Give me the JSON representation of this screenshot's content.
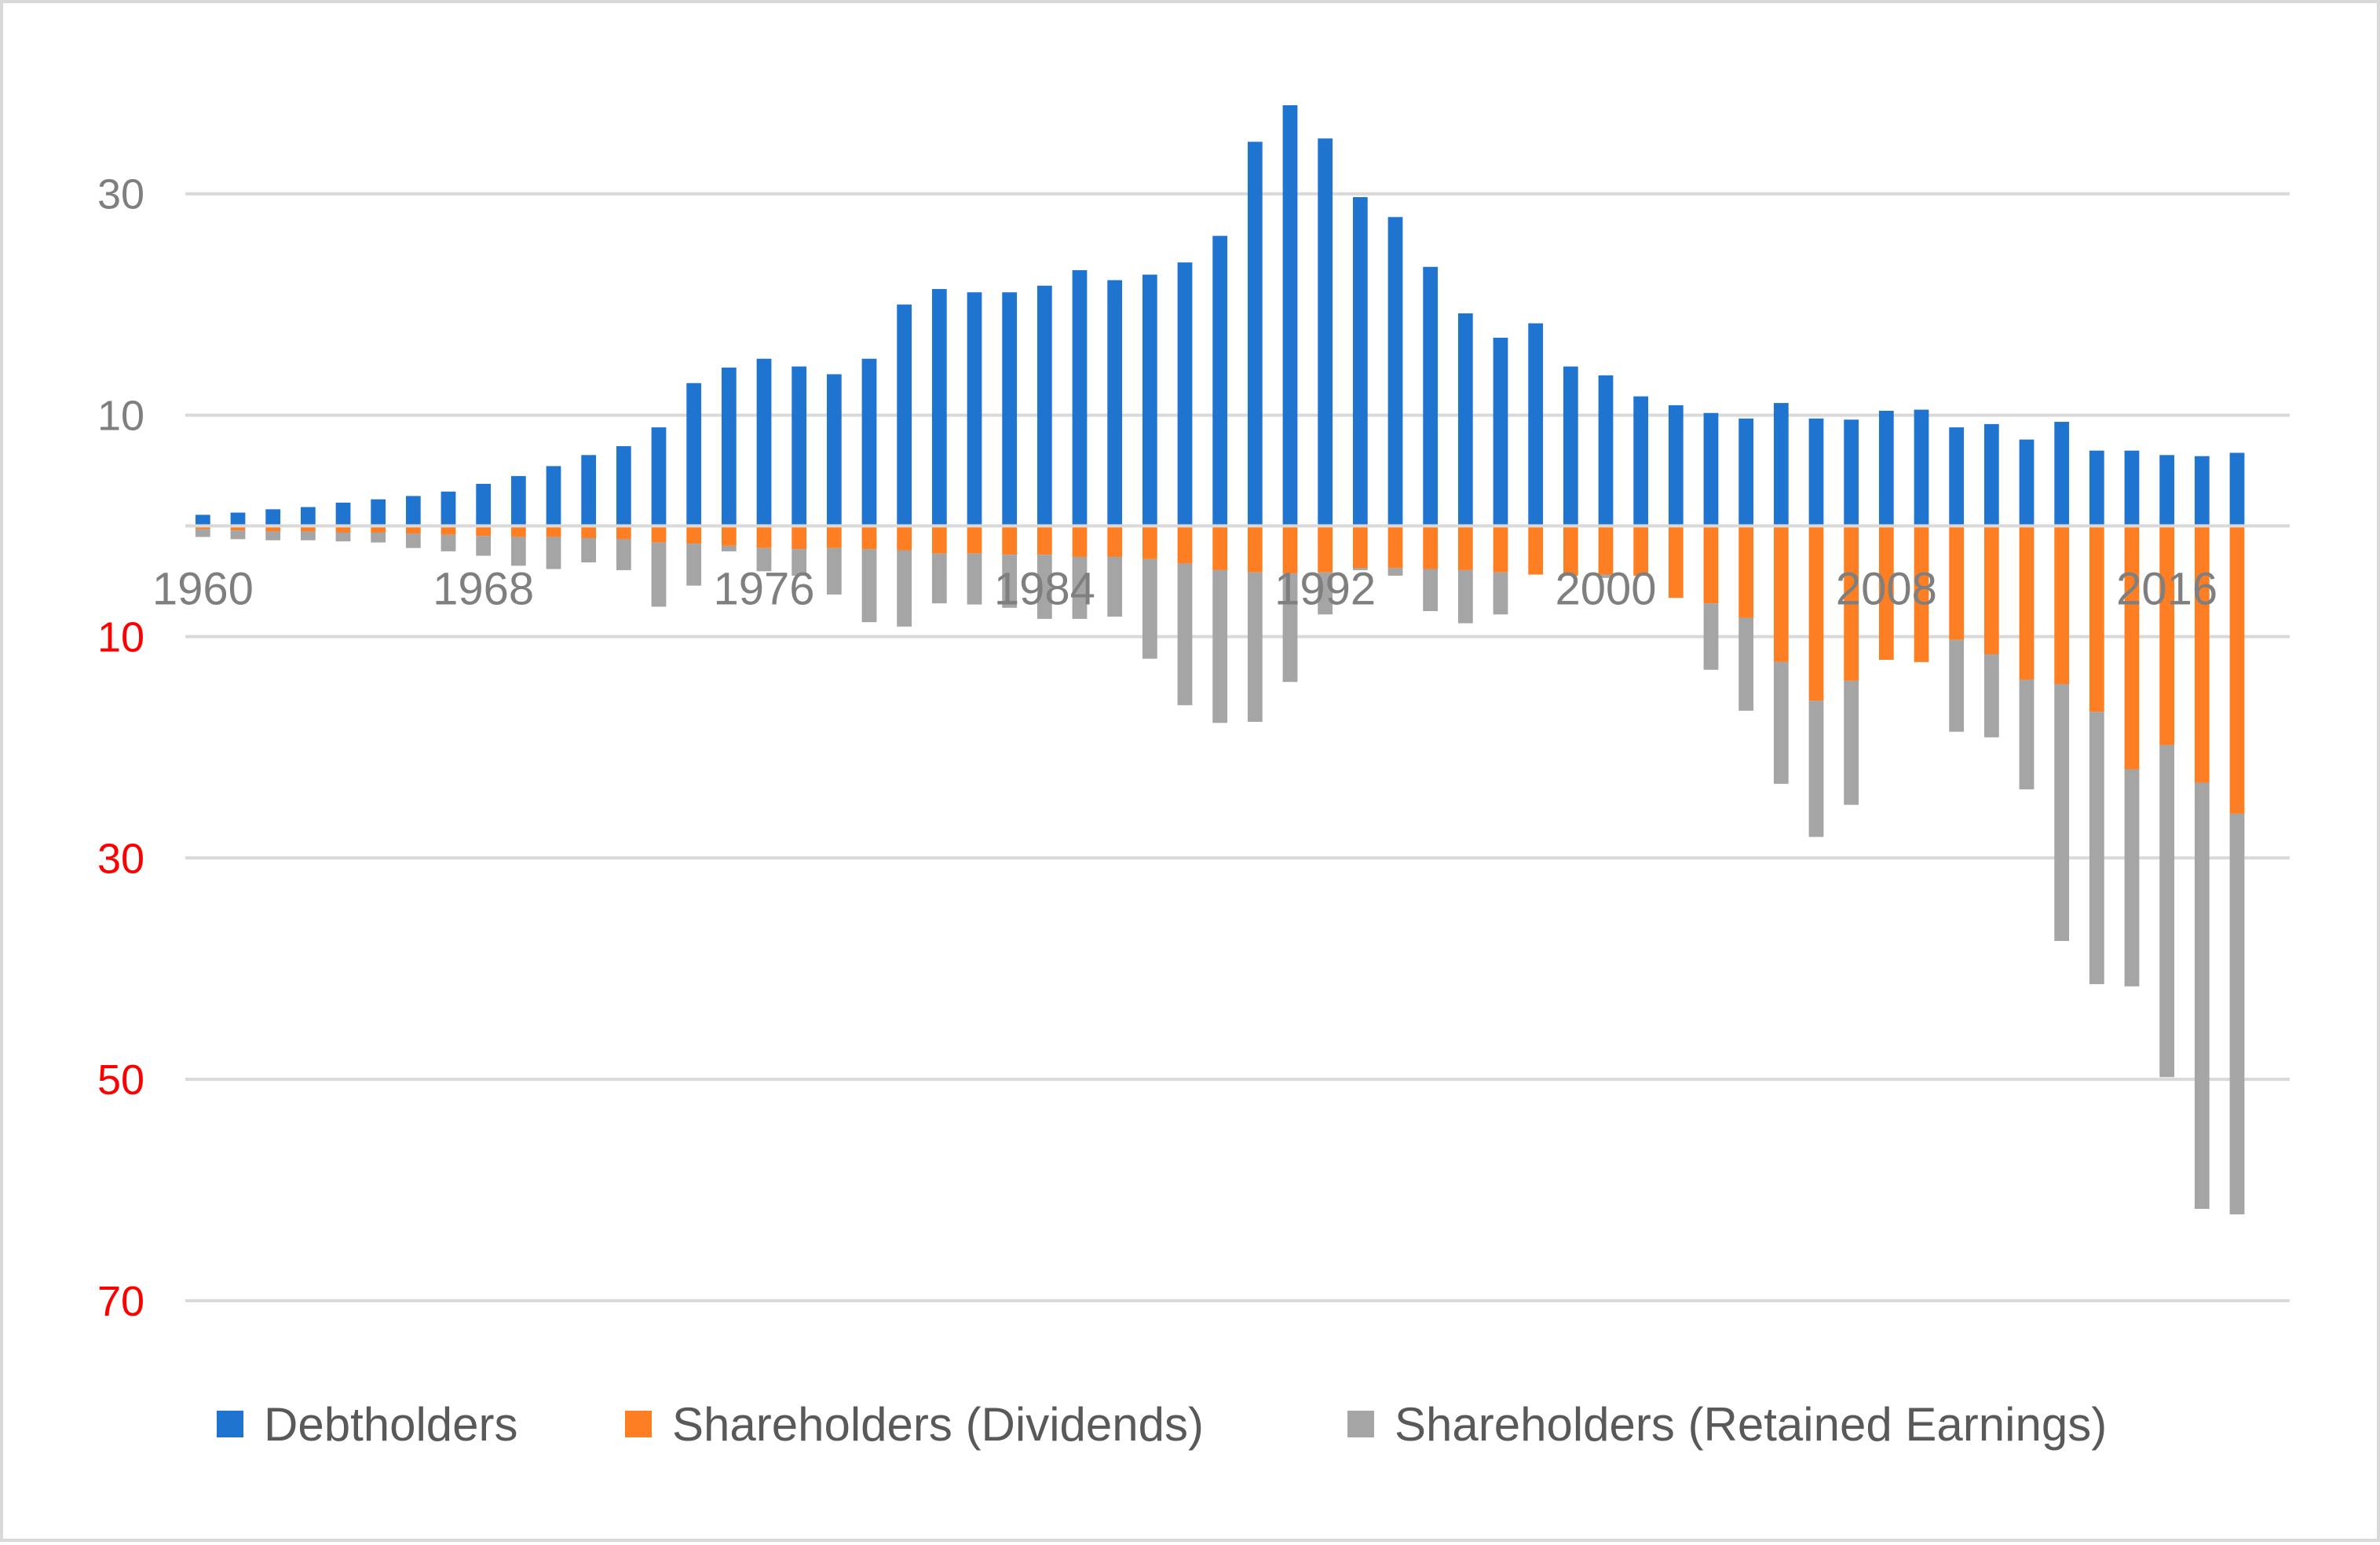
{
  "chart_data": {
    "type": "bar",
    "stacked": true,
    "grid": true,
    "legend_position": "bottom",
    "ylim": [
      -70,
      38
    ],
    "y_ticks": [
      {
        "value": 30,
        "label": "30",
        "color": "#7f7f7f"
      },
      {
        "value": 10,
        "label": "10",
        "color": "#7f7f7f"
      },
      {
        "value": -10,
        "label": "10",
        "color": "#ff0000"
      },
      {
        "value": -30,
        "label": "30",
        "color": "#ff0000"
      },
      {
        "value": -50,
        "label": "50",
        "color": "#ff0000"
      },
      {
        "value": -70,
        "label": "70",
        "color": "#ff0000"
      }
    ],
    "x_tick_labels": [
      "1960",
      "1968",
      "1976",
      "1984",
      "1992",
      "2000",
      "2008",
      "2016"
    ],
    "categories": [
      1960,
      1961,
      1962,
      1963,
      1964,
      1965,
      1966,
      1967,
      1968,
      1969,
      1970,
      1971,
      1972,
      1973,
      1974,
      1975,
      1976,
      1977,
      1978,
      1979,
      1980,
      1981,
      1982,
      1983,
      1984,
      1985,
      1986,
      1987,
      1988,
      1989,
      1990,
      1991,
      1992,
      1993,
      1994,
      1995,
      1996,
      1997,
      1998,
      1999,
      2000,
      2001,
      2002,
      2003,
      2004,
      2005,
      2006,
      2007,
      2008,
      2009,
      2010,
      2011,
      2012,
      2013,
      2014,
      2015,
      2016,
      2017,
      2018,
      2019
    ],
    "series": [
      {
        "name": "Debtholders",
        "color": "#1f74d0",
        "values": [
          1.0,
          1.2,
          1.5,
          1.7,
          2.1,
          2.4,
          2.7,
          3.1,
          3.8,
          4.5,
          5.4,
          6.4,
          7.2,
          8.9,
          12.9,
          14.3,
          15.1,
          14.4,
          13.7,
          15.1,
          20.0,
          21.4,
          21.1,
          21.1,
          21.7,
          23.1,
          22.2,
          22.7,
          23.8,
          26.2,
          34.7,
          38.0,
          35.0,
          29.7,
          27.9,
          23.4,
          19.2,
          17.0,
          18.3,
          14.4,
          13.6,
          11.7,
          10.9,
          10.2,
          9.7,
          11.1,
          9.7,
          9.6,
          10.4,
          10.5,
          8.9,
          9.2,
          7.8,
          9.4,
          6.8,
          6.8,
          6.4,
          6.3,
          6.6,
          0
        ]
      },
      {
        "name": "Shareholders (Dividends)",
        "color": "#fd7e23",
        "values": [
          -0.3,
          -0.4,
          -0.5,
          -0.5,
          -0.6,
          -0.6,
          -0.7,
          -0.8,
          -0.9,
          -1.0,
          -1.0,
          -1.1,
          -1.2,
          -1.5,
          -1.6,
          -1.8,
          -2.0,
          -2.1,
          -2.0,
          -2.1,
          -2.2,
          -2.5,
          -2.5,
          -2.6,
          -2.6,
          -2.8,
          -2.8,
          -3.0,
          -3.4,
          -4.0,
          -4.2,
          -4.3,
          -4.2,
          -3.8,
          -3.8,
          -3.9,
          -4.0,
          -4.2,
          -4.4,
          -4.5,
          -4.4,
          -4.5,
          -6.5,
          -7.0,
          -8.3,
          -12.3,
          -15.8,
          -14.0,
          -12.1,
          -12.3,
          -10.3,
          -11.6,
          -13.9,
          -14.3,
          -16.8,
          -22.0,
          -19.8,
          -23.2,
          -26.0,
          0
        ]
      },
      {
        "name": "Shareholders (Retained Earnings)",
        "color": "#a5a5a5",
        "values": [
          -0.7,
          -0.8,
          -0.8,
          -0.8,
          -0.8,
          -0.9,
          -1.3,
          -1.5,
          -1.8,
          -2.6,
          -2.9,
          -2.2,
          -2.8,
          -5.8,
          -3.8,
          -0.5,
          -2.1,
          -2.4,
          -4.2,
          -6.6,
          -6.9,
          -4.5,
          -4.6,
          -4.8,
          -5.8,
          -5.6,
          -5.4,
          -9.0,
          -12.8,
          -13.8,
          -13.5,
          -9.8,
          -3.8,
          -0.2,
          -0.7,
          -3.8,
          -4.8,
          -3.8,
          0,
          0,
          -0.3,
          0,
          0,
          -6.0,
          -8.4,
          -11.0,
          -12.3,
          -11.2,
          0,
          0,
          -8.3,
          -7.5,
          -9.9,
          -23.2,
          -24.6,
          -19.6,
          -30.0,
          -38.5,
          -36.2,
          0
        ]
      }
    ]
  }
}
